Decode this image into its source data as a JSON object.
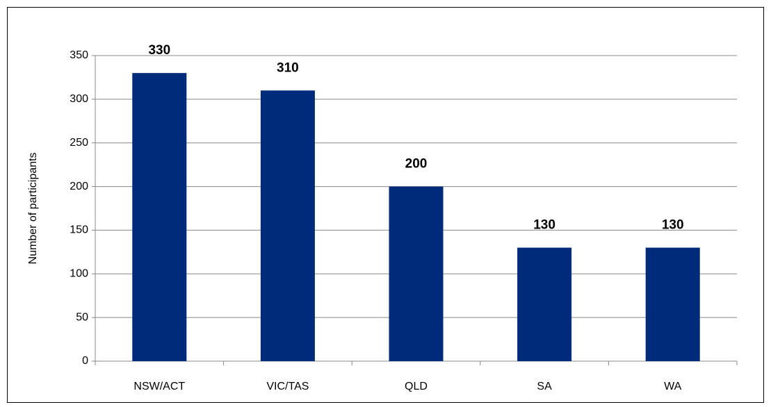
{
  "chart_data": {
    "type": "bar",
    "y_label": "Number of participants",
    "categories": [
      "NSW/ACT",
      "VIC/TAS",
      "QLD",
      "SA",
      "WA"
    ],
    "values": [
      330,
      310,
      200,
      130,
      130
    ],
    "color": "#002a7a",
    "ylim": [
      0,
      350
    ],
    "yticks": [
      0,
      50,
      100,
      150,
      200,
      250,
      300,
      350
    ],
    "grid": true,
    "data_labels": true
  }
}
